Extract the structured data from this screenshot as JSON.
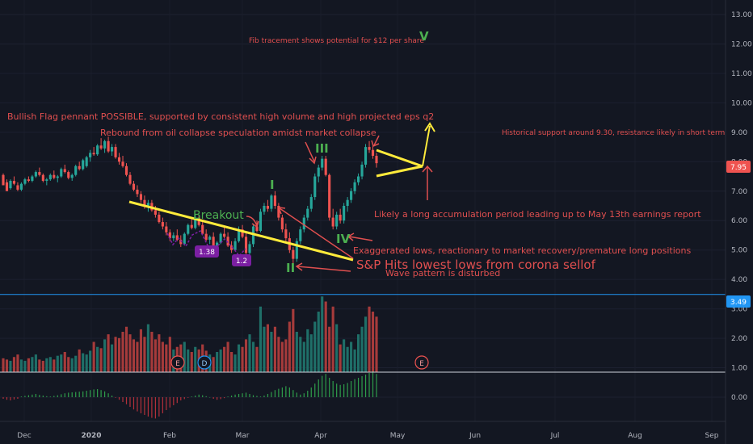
{
  "chart_data": {
    "type": "candlestick",
    "x_ticks": [
      "Dec",
      "2020",
      "Feb",
      "Mar",
      "Apr",
      "May",
      "Jun",
      "Jul",
      "Aug",
      "Sep"
    ],
    "y_ticks": [
      "13.00",
      "12.00",
      "11.00",
      "10.00",
      "9.00",
      "8.00",
      "7.00",
      "6.00",
      "5.00",
      "4.00",
      "3.00",
      "2.00",
      "1.00",
      "0.00"
    ],
    "ylim": [
      0,
      13.5
    ],
    "last_price": "7.95",
    "horizontal_line_price": "3.49",
    "candles": [
      [
        7.55,
        7.6,
        7.3,
        7.2
      ],
      [
        7.3,
        7.4,
        7.1,
        7.0
      ],
      [
        7.1,
        7.4,
        7.05,
        7.35
      ],
      [
        7.35,
        7.5,
        7.2,
        7.25
      ],
      [
        7.2,
        7.3,
        7.0,
        7.05
      ],
      [
        7.05,
        7.3,
        7.0,
        7.25
      ],
      [
        7.25,
        7.45,
        7.2,
        7.4
      ],
      [
        7.4,
        7.5,
        7.3,
        7.35
      ],
      [
        7.35,
        7.55,
        7.3,
        7.5
      ],
      [
        7.5,
        7.7,
        7.45,
        7.65
      ],
      [
        7.65,
        7.8,
        7.5,
        7.55
      ],
      [
        7.55,
        7.6,
        7.3,
        7.35
      ],
      [
        7.35,
        7.45,
        7.2,
        7.4
      ],
      [
        7.4,
        7.6,
        7.35,
        7.55
      ],
      [
        7.55,
        7.7,
        7.4,
        7.45
      ],
      [
        7.45,
        7.55,
        7.3,
        7.5
      ],
      [
        7.5,
        7.8,
        7.45,
        7.75
      ],
      [
        7.75,
        7.9,
        7.6,
        7.65
      ],
      [
        7.65,
        7.7,
        7.4,
        7.45
      ],
      [
        7.45,
        7.6,
        7.35,
        7.55
      ],
      [
        7.55,
        7.9,
        7.5,
        7.85
      ],
      [
        7.85,
        8.0,
        7.7,
        7.75
      ],
      [
        7.75,
        8.1,
        7.7,
        8.05
      ],
      [
        7.85,
        8.2,
        7.8,
        8.15
      ],
      [
        8.15,
        8.4,
        8.0,
        8.3
      ],
      [
        8.3,
        8.5,
        8.2,
        8.25
      ],
      [
        8.25,
        8.6,
        8.2,
        8.55
      ],
      [
        8.55,
        8.8,
        8.4,
        8.45
      ],
      [
        8.45,
        8.75,
        8.3,
        8.7
      ],
      [
        8.7,
        8.85,
        8.3,
        8.35
      ],
      [
        8.35,
        8.6,
        8.2,
        8.5
      ],
      [
        8.5,
        8.6,
        8.1,
        8.15
      ],
      [
        8.15,
        8.3,
        7.9,
        8.0
      ],
      [
        8.0,
        8.2,
        7.8,
        7.85
      ],
      [
        7.85,
        7.95,
        7.5,
        7.55
      ],
      [
        7.55,
        7.65,
        7.2,
        7.25
      ],
      [
        7.25,
        7.35,
        7.0,
        7.05
      ],
      [
        7.05,
        7.2,
        6.8,
        6.9
      ],
      [
        6.9,
        7.0,
        6.6,
        6.7
      ],
      [
        6.7,
        6.85,
        6.4,
        6.5
      ],
      [
        6.5,
        6.7,
        6.3,
        6.6
      ],
      [
        6.6,
        6.7,
        6.3,
        6.35
      ],
      [
        6.35,
        6.5,
        6.1,
        6.2
      ],
      [
        6.2,
        6.3,
        5.9,
        5.95
      ],
      [
        5.95,
        6.1,
        5.7,
        5.8
      ],
      [
        5.8,
        5.95,
        5.5,
        5.6
      ],
      [
        5.6,
        5.7,
        5.3,
        5.4
      ],
      [
        5.4,
        5.6,
        5.3,
        5.5
      ],
      [
        5.5,
        5.7,
        5.3,
        5.35
      ],
      [
        5.35,
        5.5,
        5.1,
        5.2
      ],
      [
        5.2,
        5.6,
        5.15,
        5.55
      ],
      [
        5.55,
        5.9,
        5.5,
        5.85
      ],
      [
        5.85,
        6.1,
        5.7,
        5.75
      ],
      [
        5.75,
        6.2,
        5.7,
        6.1
      ],
      [
        6.1,
        6.2,
        5.8,
        5.85
      ],
      [
        5.85,
        5.95,
        5.5,
        5.55
      ],
      [
        5.55,
        5.7,
        5.3,
        5.35
      ],
      [
        5.35,
        5.5,
        5.2,
        5.45
      ],
      [
        5.45,
        5.6,
        5.1,
        5.15
      ],
      [
        5.15,
        5.3,
        5.0,
        5.25
      ],
      [
        5.25,
        5.6,
        5.2,
        5.55
      ],
      [
        5.55,
        5.8,
        5.4,
        5.45
      ],
      [
        5.45,
        5.6,
        5.1,
        5.15
      ],
      [
        5.15,
        5.3,
        4.9,
        5.0
      ],
      [
        5.0,
        5.4,
        4.95,
        5.3
      ],
      [
        5.3,
        5.8,
        5.25,
        5.7
      ],
      [
        5.7,
        5.85,
        5.4,
        5.45
      ],
      [
        5.45,
        5.6,
        4.8,
        4.9
      ],
      [
        4.9,
        5.3,
        4.7,
        5.2
      ],
      [
        5.2,
        5.9,
        5.1,
        5.8
      ],
      [
        5.8,
        6.0,
        5.6,
        5.65
      ],
      [
        5.65,
        6.4,
        5.6,
        6.3
      ],
      [
        6.3,
        6.6,
        6.2,
        6.5
      ],
      [
        6.5,
        6.7,
        6.3,
        6.4
      ],
      [
        6.4,
        6.9,
        6.3,
        6.85
      ],
      [
        6.85,
        7.0,
        6.4,
        6.5
      ],
      [
        6.5,
        6.6,
        6.0,
        6.1
      ],
      [
        6.1,
        6.2,
        5.6,
        5.7
      ],
      [
        5.7,
        5.9,
        5.3,
        5.4
      ],
      [
        5.4,
        5.6,
        4.9,
        5.0
      ],
      [
        5.0,
        5.1,
        4.55,
        4.7
      ],
      [
        4.7,
        5.4,
        4.6,
        5.3
      ],
      [
        5.3,
        5.8,
        5.2,
        5.7
      ],
      [
        5.7,
        6.2,
        5.6,
        6.1
      ],
      [
        6.1,
        6.5,
        6.0,
        6.4
      ],
      [
        6.4,
        6.9,
        6.3,
        6.8
      ],
      [
        6.8,
        7.6,
        6.7,
        7.5
      ],
      [
        7.5,
        7.9,
        7.3,
        7.8
      ],
      [
        7.8,
        8.2,
        7.7,
        8.1
      ],
      [
        8.1,
        8.2,
        7.5,
        7.55
      ],
      [
        7.55,
        7.6,
        6.0,
        6.1
      ],
      [
        6.1,
        6.4,
        5.7,
        5.8
      ],
      [
        5.8,
        6.3,
        5.7,
        6.2
      ],
      [
        6.2,
        6.4,
        5.9,
        6.0
      ],
      [
        6.0,
        6.6,
        5.9,
        6.5
      ],
      [
        6.5,
        6.8,
        6.3,
        6.7
      ],
      [
        6.7,
        7.1,
        6.6,
        7.0
      ],
      [
        7.0,
        7.4,
        6.9,
        7.3
      ],
      [
        7.3,
        7.6,
        7.2,
        7.5
      ],
      [
        7.5,
        8.0,
        7.4,
        7.9
      ],
      [
        7.9,
        8.6,
        7.8,
        8.5
      ],
      [
        8.5,
        8.7,
        8.3,
        8.4
      ],
      [
        8.4,
        8.6,
        8.1,
        8.2
      ],
      [
        8.2,
        8.3,
        7.8,
        7.95
      ]
    ],
    "volume": [
      0.55,
      0.5,
      0.45,
      0.6,
      0.7,
      0.5,
      0.45,
      0.55,
      0.6,
      0.7,
      0.5,
      0.45,
      0.55,
      0.6,
      0.5,
      0.65,
      0.7,
      0.8,
      0.6,
      0.55,
      0.65,
      0.9,
      0.75,
      0.7,
      0.85,
      1.2,
      1.0,
      0.95,
      1.3,
      1.5,
      1.1,
      1.4,
      1.35,
      1.6,
      1.8,
      1.5,
      1.3,
      1.2,
      1.7,
      1.4,
      1.9,
      1.6,
      1.3,
      1.5,
      1.2,
      1.1,
      1.4,
      0.9,
      1.0,
      1.1,
      1.2,
      0.9,
      0.8,
      1.0,
      0.9,
      1.1,
      0.85,
      0.7,
      0.6,
      0.8,
      0.9,
      1.0,
      1.2,
      0.8,
      0.7,
      1.1,
      1.0,
      1.3,
      1.5,
      1.2,
      1.0,
      2.6,
      1.8,
      1.9,
      1.6,
      1.8,
      1.4,
      1.2,
      1.3,
      2.0,
      2.5,
      1.6,
      1.4,
      1.2,
      1.7,
      1.5,
      2.0,
      2.4,
      3.0,
      2.8,
      1.8,
      2.6,
      1.9,
      1.1,
      1.3,
      1.0,
      1.2,
      0.9,
      1.5,
      1.8,
      2.2,
      2.6,
      2.4,
      2.2
    ],
    "histogram": [
      -0.05,
      -0.08,
      -0.1,
      -0.07,
      -0.05,
      0.02,
      0.04,
      0.06,
      0.08,
      0.1,
      0.07,
      0.05,
      0.03,
      0.02,
      0.04,
      0.06,
      0.09,
      0.12,
      0.14,
      0.15,
      0.16,
      0.17,
      0.18,
      0.2,
      0.22,
      0.24,
      0.25,
      0.22,
      0.18,
      0.12,
      0.05,
      -0.02,
      -0.08,
      -0.15,
      -0.22,
      -0.3,
      -0.38,
      -0.44,
      -0.5,
      -0.55,
      -0.6,
      -0.64,
      -0.66,
      -0.6,
      -0.5,
      -0.4,
      -0.32,
      -0.25,
      -0.18,
      -0.1,
      -0.06,
      -0.02,
      0.02,
      0.05,
      0.08,
      0.06,
      0.03,
      0.0,
      -0.05,
      -0.08,
      -0.06,
      -0.03,
      0.02,
      0.05,
      0.08,
      0.1,
      0.12,
      0.14,
      0.1,
      0.06,
      0.04,
      0.02,
      0.05,
      0.1,
      0.16,
      0.22,
      0.26,
      0.3,
      0.34,
      0.3,
      0.22,
      0.14,
      0.08,
      0.12,
      0.2,
      0.3,
      0.42,
      0.55,
      0.66,
      0.72,
      0.6,
      0.5,
      0.42,
      0.38,
      0.4,
      0.44,
      0.5,
      0.56,
      0.6,
      0.65,
      0.7,
      0.75,
      0.8,
      0.72
    ],
    "event_markers": [
      "E",
      "D",
      "E"
    ]
  },
  "annotations": {
    "fib": "Fib tracement shows potential for $12 per share",
    "wave_v": "V",
    "bullish_flag": "Bullish Flag pennant POSSIBLE, supported by consistent high volume and high projected eps q2",
    "rebound": "Rebound from oil collapse speculation amidst market collapse",
    "wave_iii": "III",
    "historical": "Historical support around 9.30, resistance likely in short term",
    "wave_i": "I",
    "breakout": "Breakout",
    "accumulation": "Likely a long accumulation period leading up to May 13th earnings report",
    "wave_iv": "IV",
    "exaggerated": "Exaggerated lows, reactionary to market recovery/premature long positions",
    "badge_1": "1.38",
    "badge_2": "1.2",
    "sp_hits": "S&P Hits lowest lows from corona sellof",
    "wave_ii": "II",
    "wave_disturbed": "Wave pattern is disturbed"
  },
  "colors": {
    "up": "#26a69a",
    "down": "#ef5350",
    "background": "#131722",
    "annotation_red": "#e04f4f",
    "wave_green": "#4caf50",
    "trendline_yellow": "#ffeb3b",
    "badge_purple": "#7b1fa2",
    "price_line_blue": "#2196f3"
  }
}
